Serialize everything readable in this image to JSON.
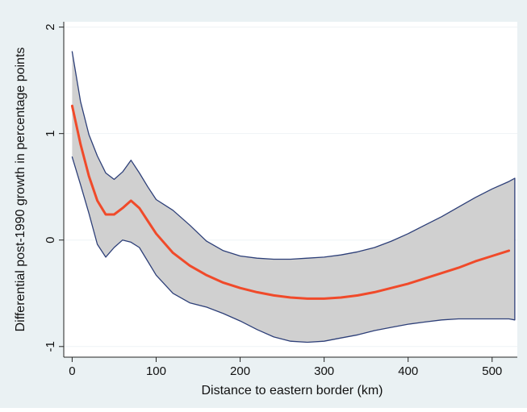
{
  "chart_data": {
    "type": "line",
    "title": "",
    "xlabel": "Distance to eastern border (km)",
    "ylabel": "Differential post-1990 growth in percentage points",
    "xlim": [
      -10,
      530
    ],
    "ylim": [
      -1.1,
      2.05
    ],
    "xticks": [
      0,
      100,
      200,
      300,
      400,
      500
    ],
    "yticks": [
      -1,
      0,
      1,
      2
    ],
    "grid": "horizontal",
    "legend": "none",
    "colors": {
      "line": "#f04a2a",
      "band_fill": "#d0d0d0",
      "band_edge": "#2d3f78",
      "plot_bg": "#ffffff",
      "outer_bg": "#eaf1f3"
    },
    "series": [
      {
        "role": "estimate",
        "x": [
          0,
          10,
          20,
          30,
          40,
          50,
          60,
          70,
          80,
          90,
          100,
          120,
          140,
          160,
          180,
          200,
          220,
          240,
          260,
          280,
          300,
          320,
          340,
          360,
          380,
          400,
          420,
          440,
          460,
          480,
          500,
          520
        ],
        "y": [
          1.26,
          0.9,
          0.6,
          0.37,
          0.24,
          0.24,
          0.3,
          0.37,
          0.3,
          0.18,
          0.06,
          -0.12,
          -0.24,
          -0.33,
          -0.4,
          -0.45,
          -0.49,
          -0.52,
          -0.54,
          -0.55,
          -0.55,
          -0.54,
          -0.52,
          -0.49,
          -0.45,
          -0.41,
          -0.36,
          -0.31,
          -0.26,
          -0.2,
          -0.15,
          -0.1
        ]
      },
      {
        "role": "ci_upper",
        "x": [
          0,
          10,
          20,
          30,
          40,
          50,
          60,
          70,
          80,
          90,
          100,
          120,
          140,
          160,
          180,
          200,
          220,
          240,
          260,
          280,
          300,
          320,
          340,
          360,
          380,
          400,
          420,
          440,
          460,
          480,
          500,
          520,
          527
        ],
        "y": [
          1.77,
          1.3,
          0.99,
          0.79,
          0.63,
          0.57,
          0.64,
          0.75,
          0.63,
          0.5,
          0.38,
          0.28,
          0.14,
          -0.01,
          -0.1,
          -0.15,
          -0.17,
          -0.18,
          -0.18,
          -0.17,
          -0.16,
          -0.14,
          -0.11,
          -0.07,
          -0.01,
          0.06,
          0.14,
          0.22,
          0.31,
          0.4,
          0.48,
          0.55,
          0.58
        ]
      },
      {
        "role": "ci_lower",
        "x": [
          0,
          10,
          20,
          30,
          40,
          50,
          60,
          70,
          80,
          90,
          100,
          120,
          140,
          160,
          180,
          200,
          220,
          240,
          260,
          280,
          300,
          320,
          340,
          360,
          380,
          400,
          420,
          440,
          460,
          480,
          500,
          520,
          527
        ],
        "y": [
          0.78,
          0.52,
          0.25,
          -0.04,
          -0.16,
          -0.07,
          0.0,
          -0.02,
          -0.07,
          -0.2,
          -0.33,
          -0.5,
          -0.59,
          -0.63,
          -0.69,
          -0.76,
          -0.84,
          -0.91,
          -0.95,
          -0.96,
          -0.95,
          -0.92,
          -0.89,
          -0.85,
          -0.82,
          -0.79,
          -0.77,
          -0.75,
          -0.74,
          -0.74,
          -0.74,
          -0.74,
          -0.75
        ]
      }
    ]
  }
}
